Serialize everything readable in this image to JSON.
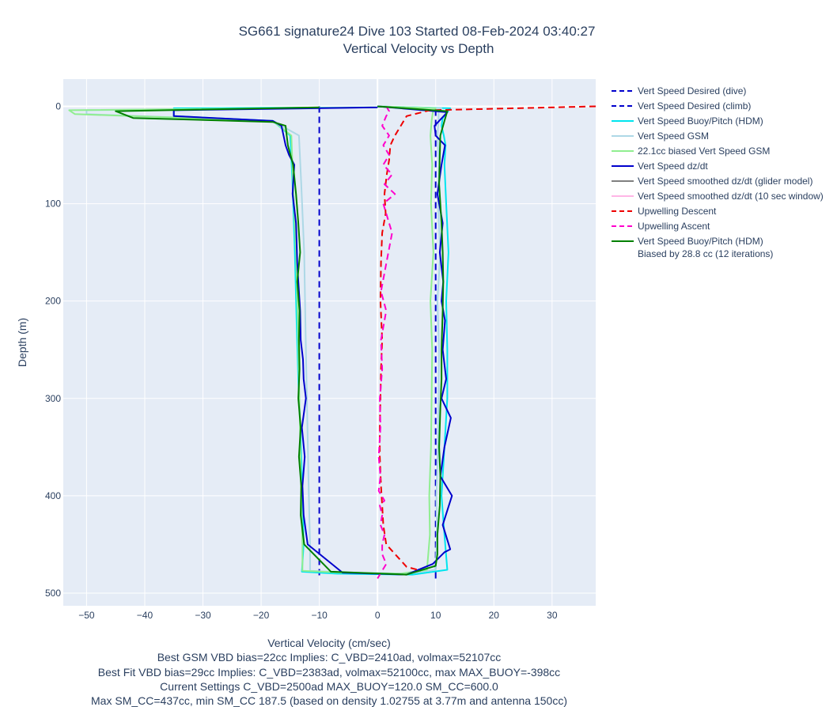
{
  "chart_data": {
    "type": "line",
    "title": "SG661 signature24 Dive 103 Started 08-Feb-2024 03:40:27",
    "subtitle": "Vertical Velocity vs Depth",
    "xlabel": "Vertical Velocity (cm/sec)",
    "ylabel": "Depth (m)",
    "xlim": [
      -54,
      37.5
    ],
    "ylim": [
      513,
      -28
    ],
    "xticks": [
      -50,
      -40,
      -30,
      -20,
      -10,
      0,
      10,
      20,
      30
    ],
    "yticks": [
      0,
      100,
      200,
      300,
      400,
      500
    ],
    "grid": true,
    "legend_position": "right",
    "notes": [
      "Best GSM VBD bias=22cc Implies: C_VBD=2410ad, volmax=52107cc",
      "Best Fit VBD bias=29cc Implies: C_VBD=2383ad, volmax=52100cc, max MAX_BUOY=-398cc",
      "Current Settings C_VBD=2500ad MAX_BUOY=120.0 SM_CC=600.0",
      "Max SM_CC=437cc, min SM_CC 187.5 (based on density 1.02755 at 3.77m and antenna 150cc)"
    ],
    "series": [
      {
        "name": "Vert Speed Desired (dive)",
        "color": "#0000cc",
        "dash": true,
        "x": [
          -10,
          -10
        ],
        "y": [
          0,
          485
        ]
      },
      {
        "name": "Vert Speed Desired (climb)",
        "color": "#0000cc",
        "dash": true,
        "x": [
          10,
          10
        ],
        "y": [
          485,
          0
        ]
      },
      {
        "name": "Vert Speed Buoy/Pitch (HDM)",
        "color": "#00e5ee",
        "dash": false,
        "x": [
          0,
          -35,
          -35,
          -18,
          -15,
          -14.6,
          -14.2,
          -13.9,
          -13.6,
          -13.2,
          -12.9,
          -12.7,
          -13,
          -7,
          6,
          12,
          11.5,
          11,
          11.5,
          12,
          12,
          11.8,
          12.2,
          11.8,
          11.5,
          11.7,
          11.4,
          11,
          11.2,
          12,
          12.5,
          0
        ],
        "y": [
          1,
          2,
          10,
          15,
          30,
          80,
          150,
          220,
          280,
          340,
          400,
          450,
          478,
          480,
          481,
          476,
          440,
          400,
          350,
          300,
          250,
          200,
          150,
          100,
          60,
          40,
          30,
          20,
          12,
          6,
          2,
          0
        ]
      },
      {
        "name": "Vert Speed GSM",
        "color": "#add8e6",
        "dash": false,
        "x": [
          0,
          -50,
          -50,
          -18,
          -13.5,
          -13.1,
          -12.6,
          -12.4,
          -12.2,
          -12,
          -11.8,
          -11.6,
          -11.6,
          -5,
          5,
          10,
          10.2,
          10.1,
          10.4,
          10.5,
          10.6,
          10.3,
          10.8,
          10.4,
          10.6,
          10.3,
          10.5,
          10.5,
          11,
          0
        ],
        "y": [
          1,
          4,
          8,
          15,
          30,
          80,
          150,
          220,
          280,
          340,
          400,
          450,
          477,
          479,
          480,
          476,
          440,
          400,
          350,
          300,
          250,
          200,
          150,
          100,
          60,
          30,
          15,
          6,
          2,
          0
        ]
      },
      {
        "name": "22.1cc biased Vert Speed GSM",
        "color": "#90ee90",
        "dash": false,
        "x": [
          0,
          -53,
          -52,
          -18,
          -14.8,
          -14.5,
          -14,
          -13.7,
          -13.5,
          -13.3,
          -13.1,
          -12.9,
          -12.9,
          -6,
          4,
          8.5,
          9,
          8.9,
          9.2,
          9.3,
          9.4,
          9.1,
          9.6,
          9.2,
          9.4,
          9.1,
          9.3,
          9.5,
          10,
          0
        ],
        "y": [
          1,
          4,
          8,
          15,
          30,
          80,
          150,
          220,
          280,
          340,
          400,
          450,
          477,
          479,
          480,
          476,
          440,
          400,
          350,
          300,
          250,
          200,
          150,
          100,
          60,
          30,
          15,
          6,
          2,
          0
        ]
      },
      {
        "name": "Vert Speed dz/dt",
        "color": "#0000cc",
        "dash": false,
        "x": [
          0,
          -35,
          -35,
          -18,
          -16.5,
          -15.8,
          -15.2,
          -14.3,
          -14.6,
          -14,
          -13.8,
          -13.6,
          -13.3,
          -13.2,
          -12.8,
          -12.7,
          -12.3,
          -13,
          -12.5,
          -12.9,
          -12.7,
          -12,
          -6,
          5,
          9.5,
          11.5,
          12.5,
          11.2,
          12.8,
          10.8,
          11.5,
          12.6,
          11,
          11.8,
          11.2,
          11.6,
          11,
          11.3,
          10.7,
          11.2,
          10.3,
          11,
          11.6,
          10,
          9.8,
          12,
          0
        ],
        "y": [
          1,
          4,
          10,
          15,
          20,
          40,
          50,
          60,
          90,
          120,
          160,
          180,
          210,
          240,
          260,
          280,
          300,
          330,
          360,
          390,
          420,
          450,
          479,
          481,
          470,
          458,
          455,
          430,
          400,
          380,
          350,
          320,
          300,
          280,
          250,
          220,
          200,
          180,
          150,
          120,
          90,
          60,
          40,
          30,
          20,
          6,
          0
        ]
      },
      {
        "name": "Vert Speed smoothed dz/dt (glider model)",
        "color": "#808080",
        "dash": false,
        "legendonly": true,
        "x": [],
        "y": []
      },
      {
        "name": "Vert Speed smoothed dz/dt (10 sec window)",
        "color": "#ffb6e6",
        "dash": false,
        "legendonly": true,
        "x": [],
        "y": []
      },
      {
        "name": "Upwelling Descent",
        "color": "#ee0000",
        "dash": true,
        "x": [
          37.5,
          9,
          5,
          4,
          3,
          2.2,
          2,
          1.6,
          1.2,
          1.4,
          0.8,
          0.6,
          0.5,
          0.8,
          0.6,
          0.5,
          0.4,
          0.4,
          0.6,
          0.8,
          1,
          1.5,
          5,
          7.5
        ],
        "y": [
          0,
          4,
          10,
          20,
          30,
          40,
          55,
          70,
          90,
          110,
          130,
          160,
          200,
          240,
          270,
          300,
          330,
          360,
          390,
          410,
          430,
          450,
          473,
          477
        ]
      },
      {
        "name": "Upwelling Ascent",
        "color": "#ff00cc",
        "dash": true,
        "x": [
          0,
          1.5,
          0.8,
          0.8,
          1.2,
          0.5,
          0.8,
          0.4,
          1.2,
          0.2,
          0.5,
          0.2,
          0.5,
          0.4,
          0.8,
          0.6,
          1.5,
          0.6,
          2.5,
          1,
          3,
          1.2,
          2.5,
          1,
          2,
          1,
          2,
          0.8,
          1.5,
          2,
          1.5
        ],
        "y": [
          485,
          470,
          460,
          450,
          440,
          430,
          420,
          410,
          405,
          395,
          380,
          360,
          330,
          300,
          270,
          240,
          210,
          190,
          130,
          100,
          90,
          80,
          70,
          60,
          50,
          40,
          30,
          20,
          10,
          5,
          0
        ]
      },
      {
        "name": "Vert Speed Buoy/Pitch (HDM)\nBiased by 28.8 cc (12 iterations)",
        "color": "#008000",
        "dash": false,
        "x": [
          -10,
          -45,
          -42,
          -18,
          -15.8,
          -15.6,
          -15.4,
          -14.5,
          -14,
          -13.6,
          -13.3,
          -13.8,
          -13.4,
          -13.5,
          -13.4,
          -13.6,
          -13.2,
          -13.5,
          -13.1,
          -13.2,
          -12.6,
          -8,
          5,
          10,
          10.3,
          10.3,
          10.7,
          10.8,
          10.6,
          10.8,
          11,
          11,
          11.2,
          11.3,
          11.2,
          11,
          10.6,
          10.7,
          10.8,
          11.5,
          12,
          0
        ],
        "y": [
          1,
          5,
          12,
          16,
          20,
          30,
          40,
          60,
          90,
          120,
          150,
          180,
          210,
          240,
          270,
          300,
          330,
          360,
          390,
          420,
          450,
          478,
          481,
          472,
          460,
          440,
          410,
          380,
          350,
          310,
          280,
          250,
          210,
          180,
          150,
          120,
          80,
          50,
          30,
          15,
          5,
          0
        ]
      }
    ]
  }
}
